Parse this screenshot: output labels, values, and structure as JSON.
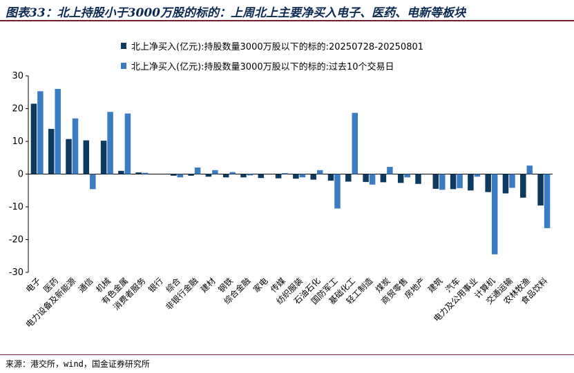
{
  "title": "图表33：北上持股小于3000万股的标的：上周北上主要净买入电子、医药、电新等板块",
  "source": "来源：港交所，wind，国金证券研究所",
  "colors": {
    "series1": "#0f3a5f",
    "series2": "#3a7cc4",
    "rule": "#7a1a2a",
    "title": "#0b2a52"
  },
  "chart_data": {
    "type": "bar",
    "ylim": [
      -30,
      30
    ],
    "yticks": [
      -30,
      -20,
      -10,
      0,
      10,
      20,
      30
    ],
    "legend_position": "top-left",
    "grid": false,
    "categories": [
      "电子",
      "医药",
      "电力设备及新能源",
      "通信",
      "机械",
      "有色金属",
      "消费者服务",
      "银行",
      "综合",
      "非银行金融",
      "建材",
      "钢铁",
      "综合金融",
      "家电",
      "传媒",
      "纺织服装",
      "石油石化",
      "国防军工",
      "基础化工",
      "轻工制造",
      "煤炭",
      "商贸零售",
      "房地产",
      "建筑",
      "汽车",
      "电力及公用事业",
      "计算机",
      "交通运输",
      "农林牧渔",
      "食品饮料"
    ],
    "series": [
      {
        "name": "北上净买入(亿元):持股数量3000万股以下的标的:20250728-20250801",
        "values": [
          21.5,
          13.8,
          10.7,
          10.3,
          10.2,
          1.0,
          0.5,
          0.0,
          -0.5,
          -0.5,
          -0.8,
          -1.0,
          -1.0,
          -1.2,
          -1.3,
          -1.4,
          -1.7,
          -2.0,
          -2.3,
          -2.4,
          -2.5,
          -2.7,
          -3.0,
          -4.5,
          -4.6,
          -5.0,
          -5.5,
          -5.9,
          -7.2,
          -9.6
        ]
      },
      {
        "name": "北上净买入(亿元):持股数量3000万股以下的标的:过去10个交易日",
        "values": [
          25.3,
          26.0,
          17.0,
          -4.6,
          19.0,
          18.5,
          0.4,
          0.0,
          -1.0,
          2.0,
          1.2,
          0.6,
          -0.4,
          0.0,
          0.3,
          -1.0,
          1.2,
          -10.5,
          18.7,
          -3.2,
          2.2,
          -1.0,
          0.0,
          -4.8,
          -4.3,
          -0.8,
          -24.5,
          -4.2,
          2.6,
          -16.5
        ]
      }
    ]
  }
}
